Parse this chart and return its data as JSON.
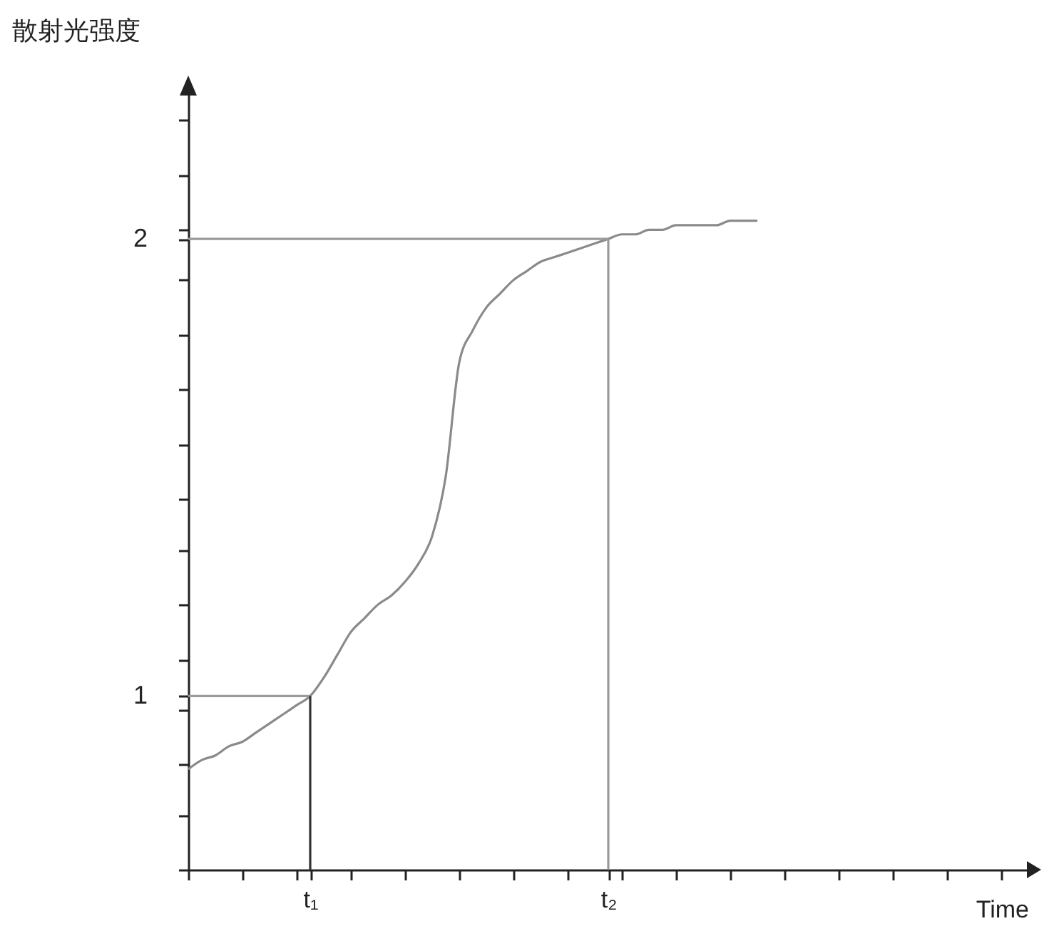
{
  "chart_data": {
    "type": "line",
    "ylabel": "散射光强度",
    "xlabel": "Time",
    "categories": [
      null,
      null,
      null,
      null,
      null,
      null,
      null,
      null,
      null,
      "t₁",
      null,
      null,
      null,
      null,
      null,
      null,
      null,
      null,
      null,
      null,
      null,
      null,
      null,
      null,
      null,
      null,
      null,
      null,
      null,
      null,
      null,
      "t₂",
      null,
      null,
      null,
      null,
      null,
      null,
      null,
      null,
      null,
      null,
      null,
      null,
      null,
      null,
      null,
      null,
      null,
      null,
      null,
      null,
      null,
      null,
      null,
      null,
      null,
      null,
      null,
      null,
      null,
      null,
      null
    ],
    "ylim": [
      0.62,
      2.32
    ],
    "yticks": [
      {
        "value": 0.62,
        "label": null
      },
      {
        "value": 0.74,
        "label": null
      },
      {
        "value": 0.85,
        "label": null
      },
      {
        "value": 0.97,
        "label": null
      },
      1,
      {
        "value": 1.08,
        "label": null
      },
      {
        "value": 1.2,
        "label": null
      },
      {
        "value": 1.32,
        "label": null
      },
      {
        "value": 1.43,
        "label": null
      },
      {
        "value": 1.55,
        "label": null
      },
      {
        "value": 1.67,
        "label": null
      },
      {
        "value": 1.79,
        "label": null
      },
      {
        "value": 1.91,
        "label": null
      },
      2,
      {
        "value": 2.02,
        "label": null
      },
      {
        "value": 2.14,
        "label": null
      },
      {
        "value": 2.26,
        "label": null
      }
    ],
    "grid": false,
    "marker": "none",
    "line_style": "solid",
    "series": [
      {
        "color": "#8a8a8a",
        "values": [
          0.84,
          0.86,
          0.87,
          0.89,
          0.9,
          0.92,
          0.94,
          0.96,
          0.98,
          1,
          1.04,
          1.09,
          1.14,
          1.17,
          1.2,
          1.22,
          1.25,
          1.29,
          1.35,
          1.48,
          1.73,
          1.8,
          1.85,
          1.88,
          1.91,
          1.93,
          1.95,
          1.96,
          1.97,
          1.98,
          1.99,
          2,
          2.01,
          2.01,
          2.02,
          2.02,
          2.03,
          2.03,
          2.03,
          2.03,
          2.04,
          2.04,
          2.04,
          null,
          null,
          null,
          null,
          null,
          null,
          null,
          null,
          null,
          null,
          null,
          null,
          null,
          null,
          null,
          null,
          null,
          null,
          null,
          null
        ]
      },
      {
        "color": "#9a9a9a",
        "values": [
          1,
          1,
          1,
          1,
          1,
          1,
          1,
          1,
          1,
          1,
          null,
          null,
          null,
          null,
          null,
          null,
          null,
          null,
          null,
          null,
          null,
          null,
          null,
          null,
          null,
          null,
          null,
          null,
          null,
          null,
          null,
          null,
          null,
          null,
          null,
          null,
          null,
          null,
          null,
          null,
          null,
          null,
          null,
          null,
          null,
          null,
          null,
          null,
          null,
          null,
          null,
          null,
          null,
          null,
          null,
          null,
          null,
          null,
          null,
          null,
          null,
          null,
          null
        ]
      },
      {
        "color": "#333333",
        "x": [
          "t₁",
          "t₁"
        ],
        "values": [
          0.62,
          1
        ]
      },
      {
        "color": "#9a9a9a",
        "values": [
          2,
          2,
          2,
          2,
          2,
          2,
          2,
          2,
          2,
          2,
          2,
          2,
          2,
          2,
          2,
          2,
          2,
          2,
          2,
          2,
          2,
          2,
          2,
          2,
          2,
          2,
          2,
          2,
          2,
          2,
          2,
          2,
          null,
          null,
          null,
          null,
          null,
          null,
          null,
          null,
          null,
          null,
          null,
          null,
          null,
          null,
          null,
          null,
          null,
          null,
          null,
          null,
          null,
          null,
          null,
          null,
          null,
          null,
          null,
          null,
          null,
          null,
          null
        ]
      },
      {
        "color": "#9a9a9a",
        "x": [
          "t₂",
          "t₂"
        ],
        "values": [
          0.62,
          2
        ]
      }
    ]
  }
}
